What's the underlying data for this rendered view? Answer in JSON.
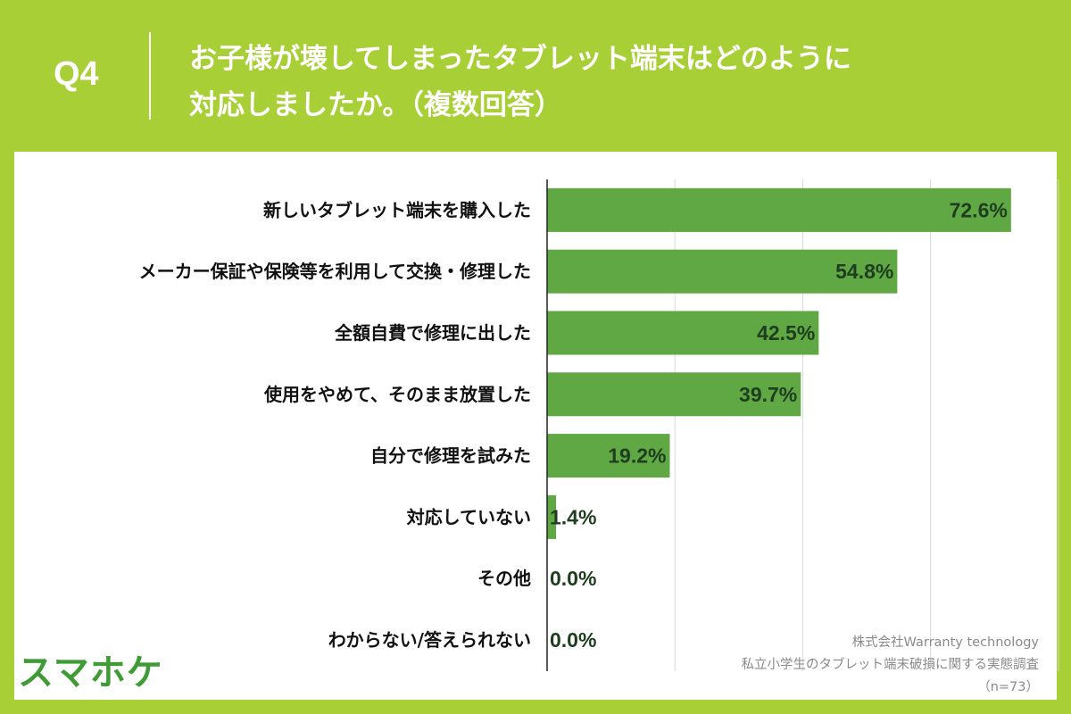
{
  "header": {
    "question_number": "Q4",
    "title_line1": "お子様が壊してしまったタブレット端末はどのように",
    "title_line2": "対応しましたか。（複数回答）"
  },
  "chart_data": {
    "type": "bar",
    "orientation": "horizontal",
    "categories": [
      "新しいタブレット端末を購入した",
      "メーカー保証や保険等を利用して交換・修理した",
      "全額自費で修理に出した",
      "使用をやめて、そのまま放置した",
      "自分で修理を試みた",
      "対応していない",
      "その他",
      "わからない/答えられない"
    ],
    "values": [
      72.6,
      54.8,
      42.5,
      39.7,
      19.2,
      1.4,
      0.0,
      0.0
    ],
    "value_labels": [
      "72.6%",
      "54.8%",
      "42.5%",
      "39.7%",
      "19.2%",
      "1.4%",
      "0.0%",
      "0.0%"
    ],
    "xlim": [
      0,
      80
    ],
    "grid": true,
    "bar_color": "#5fa844"
  },
  "source": {
    "line1": "株式会社Warranty technology",
    "line2": "私立小学生のタブレット端末破損に関する実態調査",
    "line3": "（n=73）"
  },
  "logo": {
    "text": "スマホケ",
    "color": "#3f9c35"
  }
}
